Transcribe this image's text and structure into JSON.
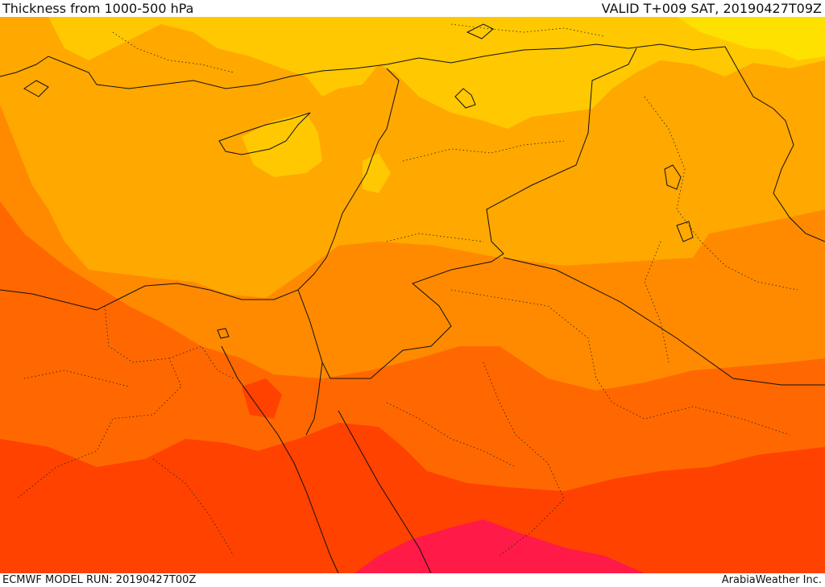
{
  "header": {
    "title": "Thickness from 1000-500 hPa",
    "valid": "VALID T+009 SAT, 20190427T09Z"
  },
  "footer": {
    "model_run": "ECMWF MODEL RUN: 20190427T00Z",
    "credit": "ArabiaWeather Inc."
  },
  "map": {
    "field": "1000-500 hPa thickness",
    "colors": {
      "band_1": "#ffe100",
      "band_2": "#ffc800",
      "band_3": "#ffa800",
      "band_4": "#ff8a00",
      "band_5": "#ff6800",
      "band_6": "#ff4200",
      "band_7": "#ff1a48",
      "border": "#111111"
    }
  }
}
